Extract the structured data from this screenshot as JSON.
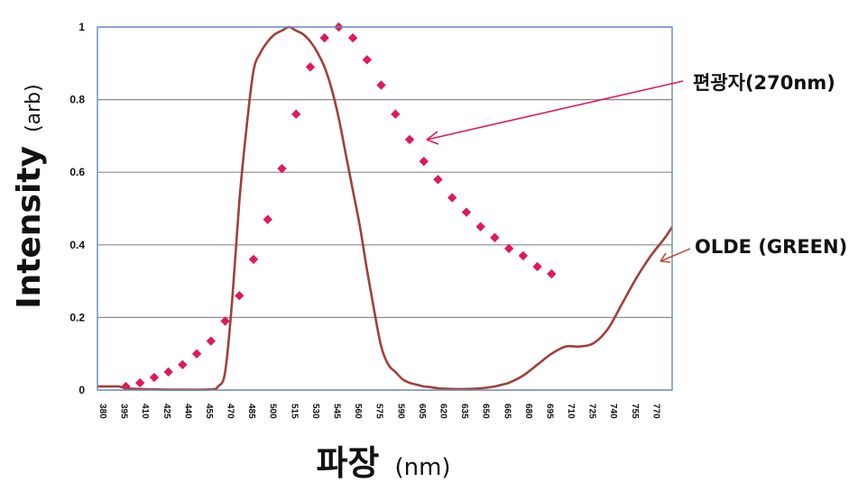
{
  "chart_data": {
    "type": "line",
    "ylabel": "Intensity",
    "ylabel_unit": "(arb)",
    "xlabel": "파장",
    "xlabel_unit": "(nm)",
    "ylim": [
      0,
      1
    ],
    "xlim": [
      380,
      785
    ],
    "grid": true,
    "y_ticks": [
      {
        "value": 0,
        "label": "0"
      },
      {
        "value": 0.2,
        "label": "0.2"
      },
      {
        "value": 0.4,
        "label": "0.4"
      },
      {
        "value": 0.6,
        "label": "0.6"
      },
      {
        "value": 0.8,
        "label": "0.8"
      },
      {
        "value": 1,
        "label": "1"
      }
    ],
    "x_ticks": [
      380,
      395,
      410,
      425,
      440,
      455,
      470,
      485,
      500,
      515,
      530,
      545,
      560,
      575,
      590,
      605,
      620,
      635,
      650,
      665,
      680,
      695,
      710,
      725,
      740,
      755,
      770
    ],
    "series": [
      {
        "name": "OLDE (GREEN)",
        "style": "line",
        "color": "#a0403a",
        "x": [
          380,
          390,
          395,
          400,
          410,
          420,
          440,
          460,
          465,
          470,
          475,
          480,
          485,
          490,
          495,
          500,
          505,
          510,
          515,
          520,
          525,
          530,
          535,
          540,
          545,
          550,
          555,
          560,
          565,
          570,
          575,
          580,
          585,
          590,
          595,
          600,
          605,
          610,
          615,
          620,
          625,
          630,
          640,
          650,
          660,
          665,
          670,
          680,
          690,
          700,
          710,
          720,
          730,
          740,
          750,
          760,
          770,
          780,
          785
        ],
        "y": [
          0.01,
          0.01,
          0.01,
          0.005,
          0.003,
          0.002,
          0.001,
          0.002,
          0.01,
          0.05,
          0.25,
          0.52,
          0.72,
          0.88,
          0.93,
          0.96,
          0.98,
          0.99,
          1.0,
          0.99,
          0.98,
          0.96,
          0.93,
          0.89,
          0.83,
          0.75,
          0.65,
          0.55,
          0.45,
          0.33,
          0.22,
          0.12,
          0.07,
          0.05,
          0.03,
          0.02,
          0.015,
          0.01,
          0.008,
          0.005,
          0.004,
          0.003,
          0.003,
          0.005,
          0.01,
          0.015,
          0.02,
          0.04,
          0.07,
          0.1,
          0.12,
          0.12,
          0.13,
          0.17,
          0.24,
          0.31,
          0.37,
          0.42,
          0.45
        ]
      },
      {
        "name": "편광자(270nm)",
        "style": "dots",
        "color": "#e0195a",
        "x": [
          400,
          410,
          420,
          430,
          440,
          450,
          460,
          470,
          480,
          490,
          500,
          510,
          520,
          530,
          540,
          550,
          560,
          570,
          580,
          590,
          600,
          610,
          620,
          630,
          640,
          650,
          660,
          670,
          680,
          690,
          700
        ],
        "y": [
          0.01,
          0.02,
          0.035,
          0.05,
          0.07,
          0.1,
          0.135,
          0.19,
          0.26,
          0.36,
          0.47,
          0.61,
          0.76,
          0.89,
          0.97,
          1.0,
          0.97,
          0.91,
          0.84,
          0.76,
          0.69,
          0.63,
          0.58,
          0.53,
          0.49,
          0.45,
          0.42,
          0.39,
          0.37,
          0.34,
          0.32
        ]
      }
    ],
    "annotations": [
      {
        "text": "편광자(270nm)",
        "series": "편광자(270nm)",
        "point_x": 600,
        "point_y": 0.69,
        "arrow_color": "#e0195a"
      },
      {
        "text": "OLDE (GREEN)",
        "series": "OLDE (GREEN)",
        "point_x": 785,
        "point_y": 0.44,
        "arrow_color": "#c0503a"
      }
    ]
  }
}
